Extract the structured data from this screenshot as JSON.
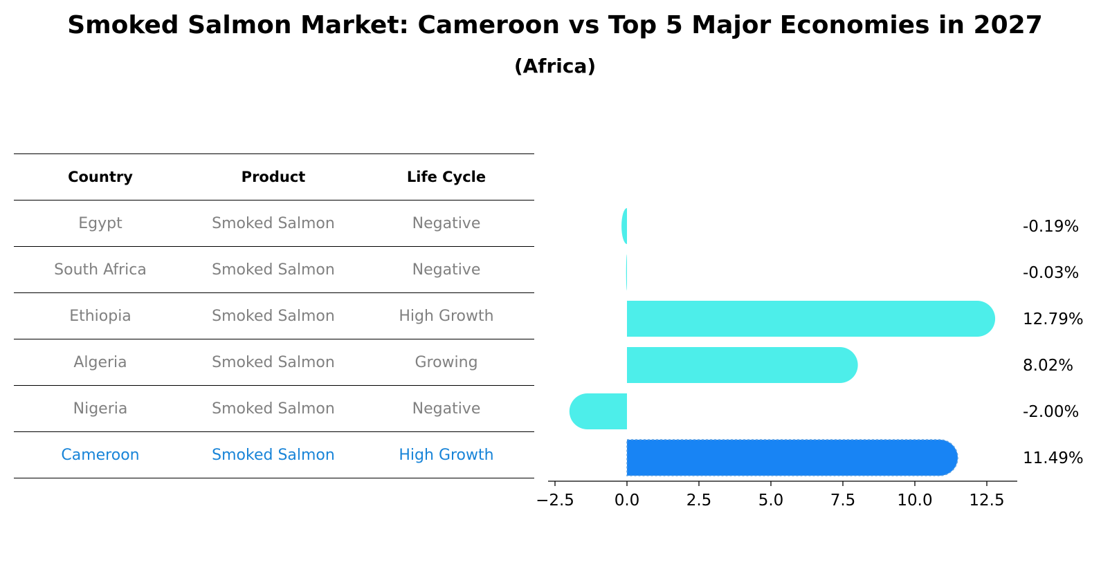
{
  "title": "Smoked Salmon Market: Cameroon vs Top 5 Major Economies in 2027",
  "subtitle": "(Africa)",
  "table": {
    "headers": [
      "Country",
      "Product",
      "Life Cycle"
    ],
    "rows": [
      {
        "country": "Egypt",
        "product": "Smoked Salmon",
        "life_cycle": "Negative"
      },
      {
        "country": "South Africa",
        "product": "Smoked Salmon",
        "life_cycle": "Negative"
      },
      {
        "country": "Ethiopia",
        "product": "Smoked Salmon",
        "life_cycle": "High Growth"
      },
      {
        "country": "Algeria",
        "product": "Smoked Salmon",
        "life_cycle": "Growing"
      },
      {
        "country": "Nigeria",
        "product": "Smoked Salmon",
        "life_cycle": "Negative"
      },
      {
        "country": "Cameroon",
        "product": "Smoked Salmon",
        "life_cycle": "High Growth"
      }
    ]
  },
  "colors": {
    "bar": "#4deeea",
    "highlight": "#1884f4",
    "highlight_text": "#1884d8",
    "row_text": "#808080"
  },
  "chart_data": {
    "type": "bar",
    "orientation": "horizontal",
    "title": "Smoked Salmon Market: Cameroon vs Top 5 Major Economies in 2027",
    "subtitle": "(Africa)",
    "categories": [
      "Egypt",
      "South Africa",
      "Ethiopia",
      "Algeria",
      "Nigeria",
      "Cameroon"
    ],
    "values": [
      -0.19,
      -0.03,
      12.79,
      8.02,
      -2.0,
      11.49
    ],
    "value_labels": [
      "-0.19%",
      "-0.03%",
      "12.79%",
      "8.02%",
      "-2.00%",
      "11.49%"
    ],
    "highlight": "Cameroon",
    "xlim": [
      -2.75,
      13.5
    ],
    "xticks": [
      -2.5,
      0.0,
      2.5,
      5.0,
      7.5,
      10.0,
      12.5
    ],
    "xtick_labels": [
      "−2.5",
      "0.0",
      "2.5",
      "5.0",
      "7.5",
      "10.0",
      "12.5"
    ],
    "xlabel": "",
    "ylabel": "",
    "grid": false,
    "legend": "none"
  }
}
